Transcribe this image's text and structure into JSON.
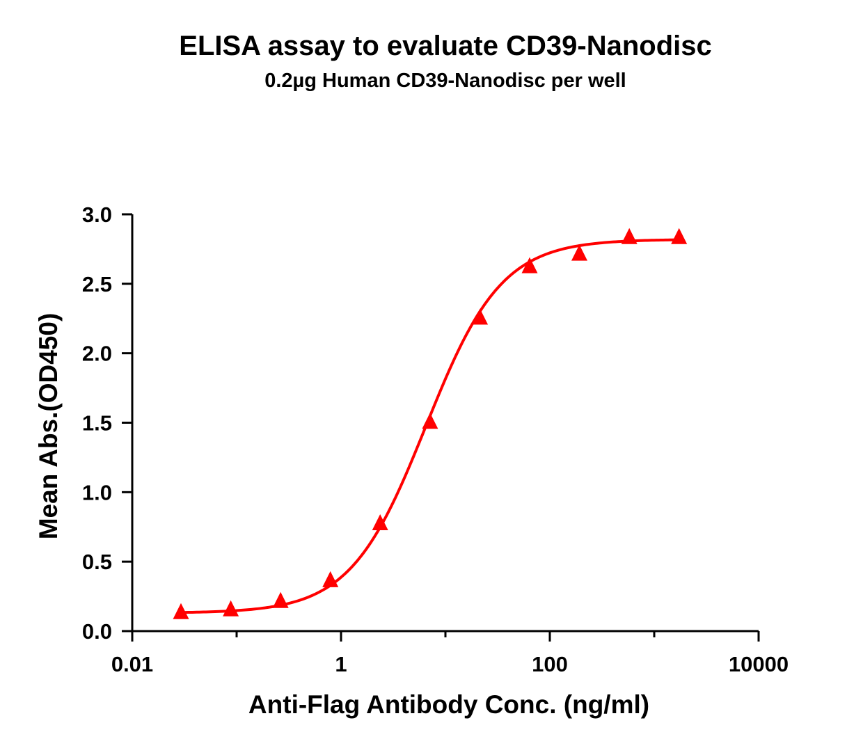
{
  "chart_data": {
    "type": "scatter",
    "title": "ELISA assay to evaluate CD39-Nanodisc",
    "subtitle": "0.2µg Human CD39-Nanodisc per well",
    "xlabel": "Anti-Flag Antibody Conc. (ng/ml)",
    "ylabel": "Mean Abs.(OD450)",
    "x_scale": "log",
    "xlim": [
      0.01,
      10000
    ],
    "ylim": [
      0,
      3.0
    ],
    "x_ticks": [
      0.01,
      1,
      100,
      10000
    ],
    "x_tick_labels": [
      "0.01",
      "1",
      "100",
      "10000"
    ],
    "y_ticks": [
      0,
      0.5,
      1.0,
      1.5,
      2.0,
      2.5,
      3.0
    ],
    "y_tick_labels": [
      "0.0",
      "0.5",
      "1.0",
      "1.5",
      "2.0",
      "2.5",
      "3.0"
    ],
    "grid": false,
    "marker": "triangle",
    "color": "#ff0000",
    "series": [
      {
        "x": [
          0.0293,
          0.0879,
          0.264,
          0.791,
          2.37,
          7.12,
          21.4,
          64.1,
          192,
          577,
          1730
        ],
        "y": [
          0.13,
          0.15,
          0.21,
          0.36,
          0.77,
          1.5,
          2.25,
          2.62,
          2.71,
          2.83,
          2.83
        ]
      }
    ],
    "fit": {
      "model": "4PL",
      "bottom": 0.13,
      "top": 2.82,
      "ec50": 6.5,
      "hill": 1.2
    }
  }
}
